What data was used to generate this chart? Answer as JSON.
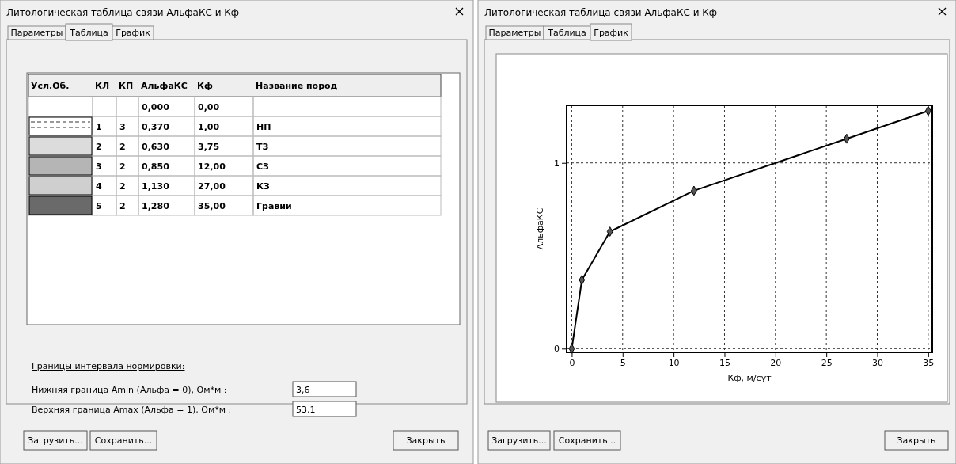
{
  "chart_data": [
    {
      "type": "other",
      "title": "Литологическая таблица связи АльфаКС и Кф",
      "annotations": [
        "Параметры",
        "Таблица",
        "График",
        "Усл.Об.",
        "КЛ",
        "КП",
        "АльфаКС",
        "Кф",
        "Название пород",
        "0,000",
        "0,00",
        "1",
        "3",
        "0,370",
        "1,00",
        "НП",
        "2",
        "2",
        "0,630",
        "3,75",
        "ТЗ",
        "3",
        "2",
        "0,850",
        "12,00",
        "СЗ",
        "4",
        "2",
        "1,130",
        "27,00",
        "КЗ",
        "5",
        "2",
        "1,280",
        "35,00",
        "Гравий",
        "Границы интервала нормировки:",
        "Нижняя граница  Amin  (Альфа = 0), Ом*м :",
        "3,6",
        "Верхняя граница Amax  (Альфа = 1), Ом*м :",
        "53,1",
        "Загрузить...",
        "Сохранить...",
        "Закрыть"
      ]
    },
    {
      "type": "line",
      "title": "Литологическая таблица связи АльфаКС и Кф",
      "xlabel": "Кф, м/сут",
      "ylabel": "АльфаКС",
      "x": [
        0,
        1,
        3.75,
        12,
        27,
        35
      ],
      "series": [
        {
          "color": "#000000",
          "values": [
            0,
            0.37,
            0.63,
            0.85,
            1.13,
            1.28
          ]
        }
      ],
      "xlim": [
        -0.5,
        35.4
      ],
      "ylim": [
        -0.02,
        1.31
      ],
      "xticks": [
        0,
        5,
        10,
        15,
        20,
        25,
        30,
        35
      ],
      "yticks": [
        0,
        1
      ],
      "grid": true,
      "marker": "diamond",
      "line_style": "solid",
      "annotations": [
        "Параметры",
        "Таблица",
        "График",
        "Загрузить...",
        "Сохранить...",
        "Закрыть"
      ]
    }
  ]
}
